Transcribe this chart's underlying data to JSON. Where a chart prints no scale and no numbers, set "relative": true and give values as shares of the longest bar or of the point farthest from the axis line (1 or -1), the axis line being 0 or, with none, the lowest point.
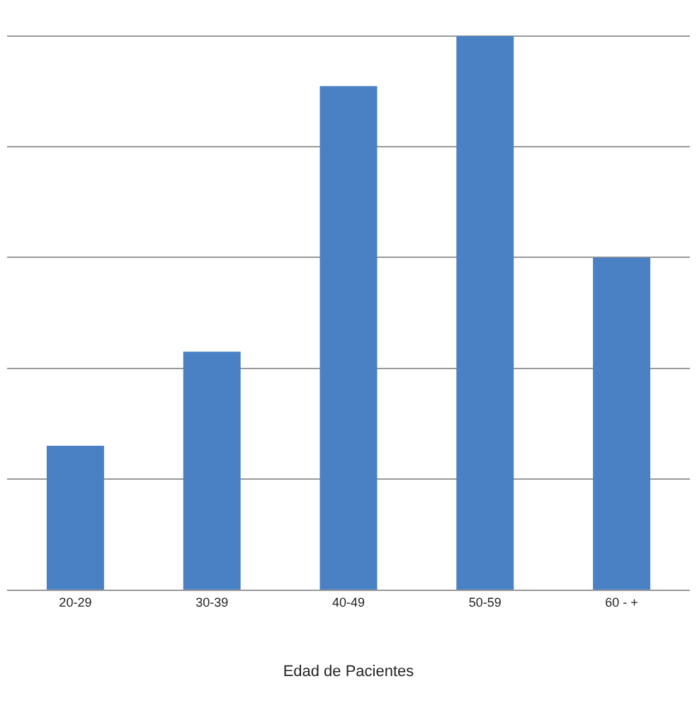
{
  "chart_data": {
    "type": "bar",
    "relative": true,
    "xlabel": "Edad de Pacientes",
    "categories": [
      "20-29",
      "30-39",
      "40-49",
      "50-59",
      "60 - +"
    ],
    "values": [
      0.26,
      0.43,
      0.91,
      1,
      0.6
    ],
    "color": "#4a80c4",
    "grid": "y"
  }
}
